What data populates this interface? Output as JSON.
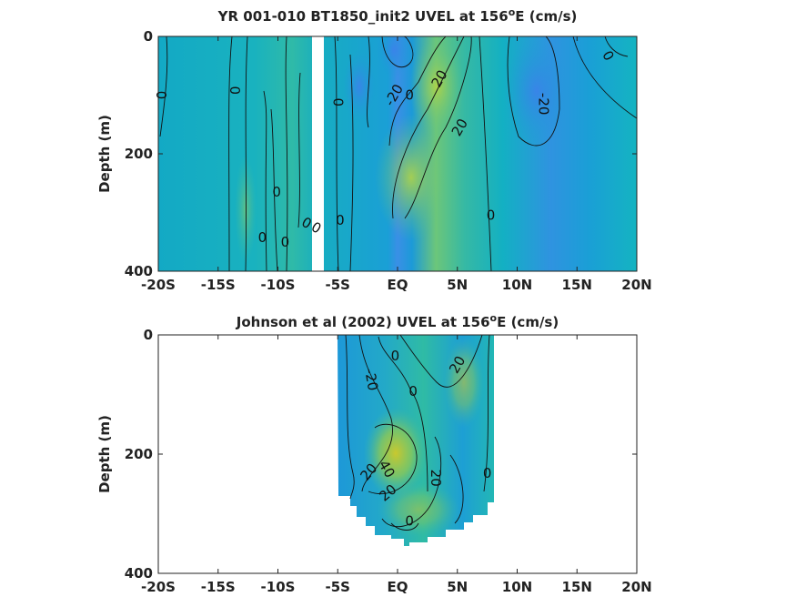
{
  "chart_data": [
    {
      "type": "heatmap",
      "title": "YR 001-010 BT1850_init2 UVEL at 156",
      "title_sup": "o",
      "title_tail": "E (cm/s)",
      "ylabel": "Depth (m)",
      "xlim": [
        -20,
        20
      ],
      "ylim": [
        0,
        400
      ],
      "xticks": [
        -20,
        -15,
        -10,
        -5,
        0,
        5,
        10,
        15,
        20
      ],
      "xtick_labels": [
        "-20S",
        "-15S",
        "-10S",
        "-5S",
        "EQ",
        "5N",
        "10N",
        "15N",
        "20N"
      ],
      "yticks": [
        0,
        200,
        400
      ],
      "ytick_labels": [
        "0",
        "200",
        "400"
      ],
      "contour_labels": [
        {
          "text": "0",
          "x": -19.7,
          "y": 100,
          "rot": -90
        },
        {
          "text": "0",
          "x": -13.6,
          "y": 92,
          "rot": 90
        },
        {
          "text": "0",
          "x": -10.1,
          "y": 265,
          "rot": 0
        },
        {
          "text": "0",
          "x": -11.3,
          "y": 343,
          "rot": 0
        },
        {
          "text": "0",
          "x": -9.4,
          "y": 350,
          "rot": 0
        },
        {
          "text": "0",
          "x": -7.6,
          "y": 318,
          "rot": 30
        },
        {
          "text": "0",
          "x": -6.8,
          "y": 326,
          "rot": 30
        },
        {
          "text": "0",
          "x": -5.0,
          "y": 112,
          "rot": 90
        },
        {
          "text": "0",
          "x": -4.8,
          "y": 313,
          "rot": 0
        },
        {
          "text": "-20",
          "x": -0.3,
          "y": 100,
          "rot": -60
        },
        {
          "text": "0",
          "x": 1.0,
          "y": 100,
          "rot": 0
        },
        {
          "text": "20",
          "x": 3.5,
          "y": 72,
          "rot": -60
        },
        {
          "text": "20",
          "x": 5.2,
          "y": 155,
          "rot": -60
        },
        {
          "text": "0",
          "x": 7.8,
          "y": 305,
          "rot": 0
        },
        {
          "text": "-20",
          "x": 12.2,
          "y": 115,
          "rot": 90
        },
        {
          "text": "0",
          "x": 17.6,
          "y": 33,
          "rot": 60
        }
      ],
      "colors": {
        "negative": "#3a8fe6",
        "zero": "#16b3c0",
        "positive": "#a8d24a"
      }
    },
    {
      "type": "heatmap",
      "title": "Johnson et al (2002) UVEL at 156",
      "title_sup": "o",
      "title_tail": "E (cm/s)",
      "ylabel": "Depth (m)",
      "xlim": [
        -20,
        20
      ],
      "ylim": [
        0,
        400
      ],
      "xticks": [
        -20,
        -15,
        -10,
        -5,
        0,
        5,
        10,
        15,
        20
      ],
      "xtick_labels": [
        "-20S",
        "-15S",
        "-10S",
        "-5S",
        "EQ",
        "5N",
        "10N",
        "15N",
        "20N"
      ],
      "yticks": [
        0,
        200,
        400
      ],
      "ytick_labels": [
        "0",
        "200",
        "400"
      ],
      "data_extent_x": [
        -5,
        8
      ],
      "contour_labels": [
        {
          "text": "0",
          "x": -0.2,
          "y": 35,
          "rot": 0
        },
        {
          "text": "-20",
          "x": -2.2,
          "y": 75,
          "rot": 80
        },
        {
          "text": "0",
          "x": 1.3,
          "y": 95,
          "rot": 0
        },
        {
          "text": "20",
          "x": 5.0,
          "y": 50,
          "rot": -60
        },
        {
          "text": "20",
          "x": -2.4,
          "y": 230,
          "rot": -50
        },
        {
          "text": "40",
          "x": -0.9,
          "y": 225,
          "rot": 60
        },
        {
          "text": "20",
          "x": -0.8,
          "y": 265,
          "rot": -40
        },
        {
          "text": "20",
          "x": 3.2,
          "y": 240,
          "rot": 90
        },
        {
          "text": "0",
          "x": 7.5,
          "y": 232,
          "rot": 0
        },
        {
          "text": "0",
          "x": 1.0,
          "y": 312,
          "rot": 0
        }
      ],
      "colors": {
        "negative": "#3a8fe6",
        "zero": "#16b3c0",
        "positive": "#b5c83a"
      }
    }
  ]
}
